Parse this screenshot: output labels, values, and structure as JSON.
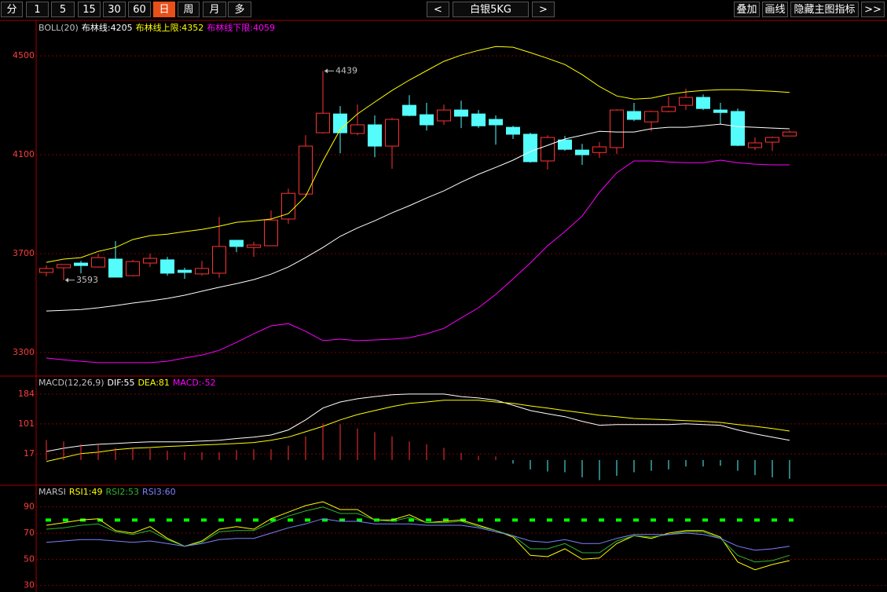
{
  "toolbar": {
    "periods": [
      "分",
      "1",
      "5",
      "15",
      "30",
      "60",
      "日",
      "周",
      "月",
      "多"
    ],
    "active_period": 6,
    "prev": "<",
    "symbol": "白银5KG",
    "next": ">",
    "tools": [
      "叠加",
      "画线",
      "隐藏主图指标",
      ">>"
    ]
  },
  "chart_data": [
    {
      "type": "candlestick",
      "title": "BOLL(20)",
      "ylim": [
        3208,
        4637
      ],
      "yticks": [
        3300,
        3700,
        4100,
        4500
      ],
      "grid": true,
      "up_color": "#ff3232",
      "down_color": "#54fcfc",
      "open": [
        3624,
        3643,
        3662,
        3646,
        3678,
        3611,
        3662,
        3675,
        3633,
        3618,
        3621,
        3754,
        3725,
        3732,
        3840,
        3941,
        4189,
        4265,
        4186,
        4221,
        4135,
        4300,
        4262,
        4237,
        4281,
        4265,
        4243,
        4211,
        4183,
        4075,
        4160,
        4119,
        4109,
        4129,
        4275,
        4233,
        4275,
        4300,
        4332,
        4281,
        4275,
        4129,
        4151,
        4176
      ],
      "high": [
        3652,
        3656,
        3671,
        3700,
        3751,
        3675,
        3700,
        3687,
        3643,
        3671,
        3849,
        3754,
        3748,
        3875,
        3963,
        4179,
        4439,
        4297,
        4303,
        4259,
        4249,
        4341,
        4310,
        4303,
        4319,
        4281,
        4259,
        4217,
        4189,
        4179,
        4176,
        4144,
        4151,
        4284,
        4310,
        4278,
        4335,
        4367,
        4344,
        4310,
        4287,
        4170,
        4173,
        4198
      ],
      "low": [
        3608,
        3593,
        3620,
        3643,
        3605,
        3608,
        3646,
        3611,
        3598,
        3611,
        3602,
        3706,
        3687,
        3732,
        3821,
        3932,
        4186,
        4106,
        4179,
        4090,
        4043,
        4256,
        4198,
        4221,
        4208,
        4208,
        4141,
        4164,
        4068,
        4040,
        4116,
        4059,
        4087,
        4103,
        4236,
        4195,
        4272,
        4281,
        4281,
        4224,
        4135,
        4119,
        4116,
        4176
      ],
      "close": [
        3640,
        3656,
        3652,
        3684,
        3605,
        3668,
        3681,
        3621,
        3624,
        3640,
        3729,
        3729,
        3735,
        3836,
        3944,
        4135,
        4268,
        4189,
        4221,
        4135,
        4243,
        4259,
        4221,
        4281,
        4256,
        4217,
        4221,
        4183,
        4072,
        4170,
        4122,
        4100,
        4132,
        4281,
        4243,
        4275,
        4294,
        4332,
        4287,
        4271,
        4138,
        4148,
        4170,
        4192
      ],
      "series": [
        {
          "name": "布林线:",
          "color": "#ffffff",
          "type": "line",
          "values": [
            3468,
            3471,
            3474,
            3481,
            3490,
            3500,
            3509,
            3519,
            3532,
            3548,
            3564,
            3579,
            3595,
            3617,
            3646,
            3684,
            3725,
            3770,
            3804,
            3833,
            3865,
            3894,
            3925,
            3954,
            3989,
            4021,
            4049,
            4078,
            4113,
            4138,
            4164,
            4179,
            4195,
            4192,
            4192,
            4205,
            4211,
            4211,
            4217,
            4224,
            4214,
            4211,
            4208,
            4205
          ]
        },
        {
          "name": "布林线上限:",
          "color": "#ffff00",
          "type": "line",
          "values": [
            3665,
            3678,
            3684,
            3709,
            3725,
            3757,
            3773,
            3779,
            3789,
            3798,
            3811,
            3827,
            3833,
            3840,
            3862,
            3932,
            4075,
            4202,
            4265,
            4313,
            4360,
            4402,
            4440,
            4478,
            4503,
            4522,
            4538,
            4535,
            4513,
            4490,
            4465,
            4424,
            4376,
            4338,
            4325,
            4329,
            4344,
            4354,
            4360,
            4363,
            4363,
            4360,
            4357,
            4352
          ]
        },
        {
          "name": "布林线下限:",
          "color": "#ff00ff",
          "type": "line",
          "values": [
            3278,
            3271,
            3265,
            3259,
            3259,
            3259,
            3259,
            3265,
            3278,
            3290,
            3309,
            3341,
            3376,
            3408,
            3417,
            3386,
            3348,
            3354,
            3348,
            3351,
            3354,
            3360,
            3376,
            3398,
            3440,
            3481,
            3535,
            3598,
            3662,
            3732,
            3789,
            3852,
            3948,
            4027,
            4075,
            4075,
            4071,
            4068,
            4068,
            4078,
            4068,
            4062,
            4059,
            4059
          ]
        }
      ]
    },
    {
      "type": "macd",
      "title": "MACD(12,26,9)",
      "ylim": [
        -68,
        232
      ],
      "yticks": [
        17,
        101,
        184
      ],
      "grid": true,
      "up_color": "#ff3232",
      "down_color": "#54fcfc",
      "series": [
        {
          "name": "DIF:",
          "color": "#ffffff",
          "type": "line",
          "values": [
            24,
            33,
            40,
            44,
            46,
            49,
            51,
            51,
            51,
            53,
            55,
            60,
            64,
            70,
            84,
            112,
            145,
            162,
            171,
            177,
            182,
            184,
            184,
            184,
            177,
            173,
            167,
            153,
            138,
            129,
            121,
            108,
            97,
            99,
            99,
            99,
            99,
            101,
            99,
            97,
            84,
            73,
            64,
            55
          ]
        },
        {
          "name": "DEA:",
          "color": "#ffff00",
          "type": "line",
          "values": [
            -4,
            7,
            18,
            22,
            29,
            33,
            35,
            38,
            40,
            42,
            44,
            46,
            49,
            55,
            64,
            79,
            94,
            112,
            127,
            138,
            149,
            158,
            162,
            167,
            167,
            167,
            162,
            158,
            151,
            145,
            138,
            132,
            125,
            121,
            116,
            114,
            112,
            110,
            108,
            105,
            99,
            94,
            88,
            81
          ]
        },
        {
          "name": "MACD:",
          "color": "#ff00ff",
          "type": "bar",
          "values": [
            56,
            52,
            44,
            44,
            34,
            32,
            32,
            26,
            22,
            22,
            22,
            28,
            30,
            30,
            40,
            66,
            102,
            100,
            88,
            78,
            66,
            52,
            44,
            34,
            20,
            12,
            10,
            -10,
            -26,
            -32,
            -34,
            -48,
            -56,
            -44,
            -34,
            -30,
            -26,
            -18,
            -18,
            -16,
            -30,
            -42,
            -48,
            -52
          ]
        }
      ]
    },
    {
      "type": "line",
      "title": "MARSI",
      "ylim": [
        25,
        106
      ],
      "yticks": [
        30,
        50,
        70,
        90
      ],
      "grid": true,
      "hlines": [
        80
      ],
      "hline_color": "#00ff00",
      "series": [
        {
          "name": "RSI1:",
          "color": "#ffff00",
          "type": "line",
          "values": [
            76,
            78,
            80,
            81,
            72,
            70,
            75,
            66,
            60,
            64,
            73,
            75,
            73,
            81,
            86,
            91,
            94,
            88,
            88,
            80,
            80,
            84,
            78,
            79,
            80,
            76,
            72,
            67,
            53,
            52,
            58,
            50,
            51,
            62,
            68,
            66,
            70,
            72,
            72,
            67,
            48,
            42,
            46,
            49
          ]
        },
        {
          "name": "RSI2:",
          "color": "#2fb52f",
          "type": "line",
          "values": [
            73,
            74,
            76,
            77,
            71,
            69,
            72,
            65,
            60,
            63,
            71,
            72,
            72,
            78,
            83,
            87,
            90,
            85,
            85,
            80,
            79,
            82,
            78,
            78,
            79,
            75,
            72,
            68,
            58,
            58,
            62,
            55,
            55,
            64,
            68,
            67,
            69,
            71,
            71,
            66,
            53,
            48,
            49,
            53
          ]
        },
        {
          "name": "RSI3:",
          "color": "#8080ff",
          "type": "line",
          "values": [
            63,
            64,
            65,
            65,
            64,
            63,
            64,
            62,
            60,
            62,
            65,
            66,
            66,
            70,
            74,
            77,
            81,
            79,
            79,
            77,
            77,
            77,
            76,
            76,
            76,
            74,
            71,
            68,
            64,
            63,
            65,
            62,
            62,
            66,
            69,
            69,
            69,
            70,
            69,
            66,
            60,
            57,
            58,
            60
          ]
        }
      ]
    }
  ]
}
